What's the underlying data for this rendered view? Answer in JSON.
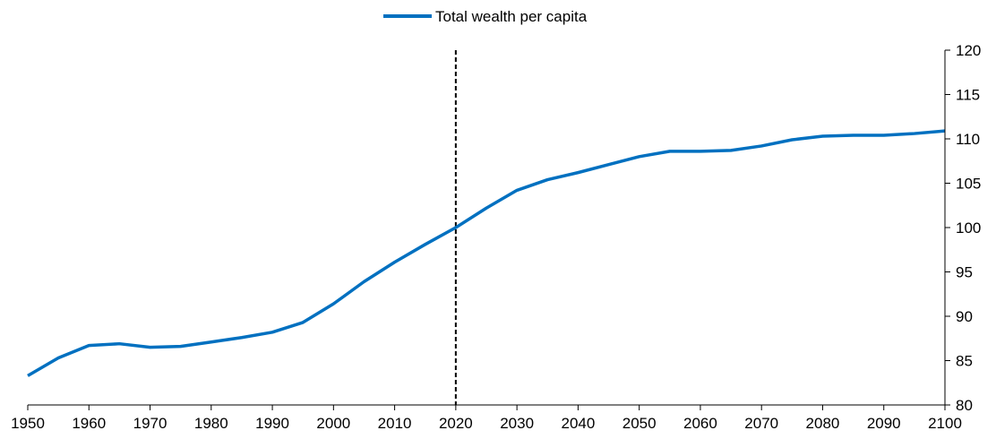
{
  "chart_data": {
    "type": "line",
    "title": "",
    "xlabel": "",
    "ylabel": "",
    "xlim": [
      1950,
      2100
    ],
    "ylim": [
      80,
      120
    ],
    "x_ticks": [
      1950,
      1960,
      1970,
      1980,
      1990,
      2000,
      2010,
      2020,
      2030,
      2040,
      2050,
      2060,
      2070,
      2080,
      2090,
      2100
    ],
    "y_ticks": [
      80,
      85,
      90,
      95,
      100,
      105,
      110,
      115,
      120
    ],
    "y_axis_side": "right",
    "grid": false,
    "legend": {
      "position": "top-center",
      "entries": [
        "Total wealth per capita"
      ]
    },
    "reference_line": {
      "axis": "x",
      "value": 2020,
      "style": "dashed",
      "color": "#000000"
    },
    "series": [
      {
        "name": "Total wealth per capita",
        "color": "#0070C0",
        "x": [
          1950,
          1955,
          1960,
          1965,
          1970,
          1975,
          1980,
          1985,
          1990,
          1995,
          2000,
          2005,
          2010,
          2015,
          2020,
          2025,
          2030,
          2035,
          2040,
          2045,
          2050,
          2055,
          2060,
          2065,
          2070,
          2075,
          2080,
          2085,
          2090,
          2095,
          2100
        ],
        "y": [
          83.3,
          85.3,
          86.7,
          86.9,
          86.5,
          86.6,
          87.1,
          87.6,
          88.2,
          89.3,
          91.4,
          93.9,
          96.1,
          98.1,
          100.0,
          102.2,
          104.2,
          105.4,
          106.2,
          107.1,
          108.0,
          108.6,
          108.6,
          108.7,
          109.2,
          109.9,
          110.3,
          110.4,
          110.4,
          110.6,
          110.9
        ]
      }
    ]
  }
}
